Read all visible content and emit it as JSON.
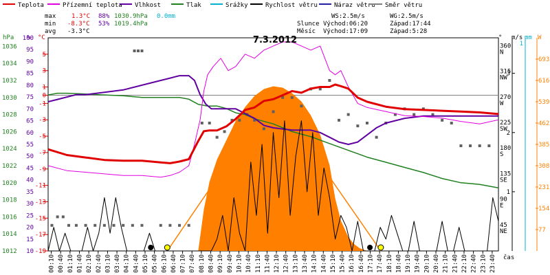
{
  "legend": [
    {
      "label": "Teplota",
      "color": "#e00000"
    },
    {
      "label": "Přízemní teplota",
      "color": "#e000e0"
    },
    {
      "label": "Vlhkost",
      "color": "#6000a0"
    },
    {
      "label": "Tlak",
      "color": "#208020"
    },
    {
      "label": "Srážky",
      "color": "#00b0d0"
    },
    {
      "label": "Rychlost větru",
      "color": "#000000"
    },
    {
      "label": "Náraz větru",
      "color": "#2020a0"
    },
    {
      "label": "Směr větru",
      "color": "#808080"
    }
  ],
  "stats": {
    "max_label": "max",
    "max_temp": "1.3°C",
    "max_hum": "88%",
    "max_press": "1030.9hPa",
    "max_rain": "0.0mm",
    "min_label": "min",
    "min_temp": "-8.3°C",
    "min_hum": "53%",
    "min_press": "1019.4hPa",
    "avg_label": "avg",
    "avg_temp": "-3.3°C"
  },
  "wind_info": {
    "ws": "WS:2.5m/s",
    "wg": "WG:2.5m/s"
  },
  "sun": {
    "label": "Slunce",
    "rise": "Východ:06:20",
    "set": "Západ:17:44"
  },
  "moon": {
    "label": "Měsíc",
    "rise": "Východ:17:09",
    "set": "Západ:5:28"
  },
  "colors": {
    "temp": "#e00000",
    "ground": "#e000e0",
    "hum": "#6000a0",
    "press": "#208020",
    "rain": "#00b0d0",
    "wind": "#000000",
    "gust": "#2020a0",
    "dir": "#606060",
    "solar": "#ff8000",
    "grid": "#e0e0e0"
  },
  "chart_data": {
    "type": "line",
    "title": "7.3.2012",
    "xlabel": "čas",
    "x_ticks": [
      "00:10",
      "00:40",
      "01:10",
      "01:40",
      "02:10",
      "02:40",
      "03:10",
      "03:40",
      "04:10",
      "04:40",
      "05:10",
      "05:40",
      "06:10",
      "06:40",
      "07:10",
      "07:40",
      "08:10",
      "08:40",
      "09:10",
      "09:40",
      "10:10",
      "10:40",
      "11:10",
      "11:40",
      "12:10",
      "12:40",
      "13:10",
      "13:40",
      "14:10",
      "14:40",
      "15:10",
      "15:40",
      "16:10",
      "16:40",
      "17:10",
      "17:40",
      "18:10",
      "18:40",
      "19:10",
      "19:40",
      "20:10",
      "20:40",
      "21:10",
      "21:40",
      "22:10",
      "22:40",
      "23:10",
      "23:40"
    ],
    "axes": {
      "hpa": {
        "label": "hPa",
        "ticks": [
          "1036",
          "1034",
          "1032",
          "1030",
          "1028",
          "1026",
          "1024",
          "1022",
          "1020",
          "1018",
          "1016",
          "1014",
          "1012"
        ],
        "range": [
          1012,
          1037
        ]
      },
      "percent": {
        "label": "%",
        "ticks": [
          "100",
          "95",
          "90",
          "85",
          "80",
          "75",
          "70",
          "65",
          "60",
          "55",
          "50",
          "45",
          "40",
          "35",
          "30",
          "25",
          "20",
          "15",
          "10"
        ],
        "range": [
          10,
          100
        ]
      },
      "celsius": {
        "label": "°C",
        "ticks": [
          "5",
          "3",
          "1",
          "0",
          "-1",
          "-3",
          "-5",
          "-7",
          "-9",
          "-11",
          "-13",
          "-15",
          "-17",
          "-19"
        ],
        "range": [
          -19,
          7
        ]
      },
      "dir": {
        "label": "°",
        "ticks": [
          {
            "deg": "360",
            "name": "N"
          },
          {
            "deg": "315",
            "name": "NW"
          },
          {
            "deg": "270",
            "name": "W"
          },
          {
            "deg": "225",
            "name": "SW"
          },
          {
            "deg": "180",
            "name": "S"
          },
          {
            "deg": "135",
            "name": "SE"
          },
          {
            "deg": "90",
            "name": "E"
          },
          {
            "deg": "45",
            "name": "NE"
          }
        ],
        "range": [
          0,
          375
        ]
      },
      "ms": {
        "label": "m/s",
        "ticks": [
          "3",
          "2",
          "1"
        ],
        "range": [
          0,
          3.6
        ]
      },
      "mm": {
        "label": "mm",
        "ticks": [
          "1"
        ]
      },
      "w": {
        "label": "W",
        "ticks": [
          "693",
          "616",
          "539",
          "462",
          "385",
          "308",
          "231",
          "154",
          "77"
        ],
        "range": [
          0,
          770
        ]
      }
    },
    "series": [
      {
        "name": "Teplota",
        "axis": "celsius",
        "x": [
          0,
          1,
          2,
          3,
          4,
          5,
          6,
          6.5,
          7,
          7.5,
          8,
          8.3,
          8.6,
          9,
          9.5,
          10,
          10.5,
          11,
          11.5,
          12,
          12.5,
          13,
          13.5,
          14,
          14.5,
          15,
          15.3,
          15.6,
          16,
          16.5,
          17,
          18,
          19,
          20,
          21,
          22,
          23,
          24
        ],
        "y": [
          -6.6,
          -7.3,
          -7.6,
          -7.9,
          -8.0,
          -8.0,
          -8.2,
          -8.3,
          -8.1,
          -7.8,
          -5.6,
          -4.4,
          -4.3,
          -4.3,
          -3.8,
          -2.9,
          -1.8,
          -1.5,
          -0.7,
          -0.5,
          0.0,
          0.5,
          0.3,
          0.8,
          1.0,
          1.0,
          1.3,
          1.1,
          0.8,
          -0.3,
          -0.8,
          -1.4,
          -1.7,
          -1.8,
          -1.9,
          -2.0,
          -2.1,
          -2.3
        ]
      },
      {
        "name": "Přízemní teplota",
        "axis": "celsius",
        "x": [
          0,
          1,
          2,
          3,
          4,
          5,
          6,
          6.5,
          7,
          7.5,
          7.8,
          8.1,
          8.3,
          8.5,
          8.8,
          9.2,
          9.6,
          10,
          10.5,
          11,
          11.5,
          12,
          12.5,
          13,
          13.5,
          14,
          14.5,
          15,
          15.3,
          15.6,
          16,
          16.5,
          17,
          18,
          19,
          20,
          21,
          22,
          23,
          24
        ],
        "y": [
          -8.6,
          -9.2,
          -9.4,
          -9.6,
          -9.8,
          -9.8,
          -10.0,
          -9.8,
          -9.4,
          -8.6,
          -6.0,
          -3.0,
          0.5,
          2.5,
          3.5,
          4.5,
          3.0,
          3.5,
          5.0,
          4.5,
          5.5,
          6.0,
          6.5,
          6.5,
          6.0,
          5.5,
          6.0,
          3.0,
          2.5,
          3.0,
          1.0,
          -1.0,
          -1.5,
          -2.0,
          -2.5,
          -2.6,
          -2.8,
          -3.2,
          -3.5,
          -3.0
        ]
      },
      {
        "name": "Vlhkost",
        "axis": "percent",
        "x": [
          0,
          0.5,
          1,
          1.5,
          2,
          3,
          4,
          5,
          6,
          6.5,
          7,
          7.5,
          7.8,
          8.1,
          8.4,
          8.7,
          9,
          9.5,
          10,
          10.5,
          11,
          11.5,
          12,
          13,
          14,
          14.5,
          15,
          15.5,
          16,
          16.5,
          17,
          17.5,
          18,
          19,
          20,
          21,
          22,
          23,
          24
        ],
        "y": [
          73,
          74,
          75,
          76,
          76,
          77,
          78,
          80,
          82,
          83,
          84,
          84,
          82,
          76,
          72,
          70,
          70,
          70,
          70,
          68,
          66,
          63,
          62,
          61,
          61,
          60,
          58,
          56,
          55,
          56,
          59,
          62,
          64,
          66,
          67,
          67,
          67,
          67,
          67
        ]
      },
      {
        "name": "Tlak",
        "axis": "hpa",
        "x": [
          0,
          0.5,
          1,
          2,
          3,
          4,
          5,
          6,
          6.5,
          7,
          7.5,
          8,
          8.5,
          9,
          9.5,
          10,
          10.5,
          11,
          12,
          13,
          14,
          15,
          16,
          16.5,
          17,
          18,
          19,
          20,
          21,
          22,
          23,
          24
        ],
        "y": [
          1030.3,
          1030.5,
          1030.5,
          1030.4,
          1030.3,
          1030.2,
          1030.0,
          1030.0,
          1030.0,
          1030.0,
          1029.8,
          1029.2,
          1029.0,
          1029.0,
          1028.7,
          1028.2,
          1028.0,
          1027.5,
          1026.9,
          1026.0,
          1025.4,
          1024.6,
          1023.8,
          1023.4,
          1023.0,
          1022.4,
          1021.8,
          1021.2,
          1020.5,
          1020.0,
          1019.8,
          1019.4
        ]
      },
      {
        "name": "Rychlost větru",
        "axis": "ms",
        "x": [
          0,
          0.3,
          0.6,
          0.9,
          1.2,
          1.5,
          1.8,
          2.1,
          2.4,
          2.7,
          3.0,
          3.3,
          3.6,
          3.9,
          4.2,
          4.5,
          4.8,
          5.1,
          5.4,
          5.7,
          6.0,
          6.3,
          6.6,
          6.9,
          7.2,
          7.5,
          7.8,
          8.1,
          8.4,
          8.7,
          9.0,
          9.3,
          9.6,
          9.9,
          10.2,
          10.5,
          10.8,
          11.1,
          11.4,
          11.7,
          12.0,
          12.3,
          12.6,
          12.9,
          13.2,
          13.5,
          13.8,
          14.1,
          14.4,
          14.7,
          15.0,
          15.3,
          15.6,
          15.9,
          16.2,
          16.5,
          16.8,
          17.1,
          17.4,
          17.7,
          18.0,
          18.3,
          18.6,
          18.9,
          19.2,
          19.5,
          19.8,
          20.1,
          20.4,
          20.7,
          21.0,
          21.3,
          21.6,
          21.9,
          22.2,
          22.5,
          22.8,
          23.1,
          23.4,
          23.7,
          24.0
        ],
        "y": [
          0,
          0.4,
          0,
          0.3,
          0,
          0,
          0,
          0.4,
          0,
          0.3,
          0.9,
          0.3,
          0.9,
          0.4,
          0,
          0,
          0,
          0,
          0.3,
          0,
          0,
          0,
          0,
          0,
          0,
          0,
          0,
          0,
          0,
          0,
          0.2,
          0.6,
          0,
          0.9,
          0.3,
          0,
          1.5,
          0.6,
          1.8,
          0.3,
          2.0,
          0.9,
          2.2,
          0.6,
          1.6,
          2.2,
          1.0,
          2.0,
          0.6,
          1.4,
          0.9,
          0.2,
          0.6,
          0.4,
          0,
          0.5,
          0,
          0,
          0,
          0.4,
          0.2,
          0.6,
          0.3,
          0,
          0,
          0.5,
          0,
          0,
          0,
          0,
          0.5,
          0,
          0,
          0.4,
          0,
          0,
          0,
          0,
          0,
          0.9,
          0.5
        ]
      },
      {
        "name": "Sluneční záření",
        "axis": "w",
        "x": [
          8.0,
          8.3,
          8.6,
          9,
          9.5,
          10,
          10.5,
          11,
          11.5,
          12,
          12.5,
          13,
          13.5,
          14,
          14.5,
          15,
          15.3,
          15.6,
          16,
          16.3,
          16.6,
          17.0
        ],
        "y": [
          0,
          150,
          250,
          330,
          400,
          470,
          520,
          560,
          585,
          595,
          590,
          570,
          540,
          490,
          420,
          310,
          190,
          110,
          50,
          25,
          10,
          0
        ]
      }
    ],
    "wind_direction_points": [
      [
        0.2,
        45
      ],
      [
        0.5,
        60
      ],
      [
        0.8,
        60
      ],
      [
        1.1,
        45
      ],
      [
        1.5,
        45
      ],
      [
        2.0,
        45
      ],
      [
        2.5,
        45
      ],
      [
        3.0,
        45
      ],
      [
        3.5,
        45
      ],
      [
        4.0,
        45
      ],
      [
        4.5,
        45
      ],
      [
        5.0,
        45
      ],
      [
        4.6,
        352
      ],
      [
        4.8,
        352
      ],
      [
        5.0,
        352
      ],
      [
        6.0,
        45
      ],
      [
        6.5,
        45
      ],
      [
        7.0,
        45
      ],
      [
        7.5,
        45
      ],
      [
        8.2,
        225
      ],
      [
        8.6,
        225
      ],
      [
        9.0,
        200
      ],
      [
        9.4,
        210
      ],
      [
        9.8,
        230
      ],
      [
        10.2,
        230
      ],
      [
        10.6,
        240
      ],
      [
        11.0,
        230
      ],
      [
        11.5,
        215
      ],
      [
        12.0,
        245
      ],
      [
        12.5,
        270
      ],
      [
        13.0,
        270
      ],
      [
        13.5,
        255
      ],
      [
        14.0,
        285
      ],
      [
        14.5,
        285
      ],
      [
        15.0,
        300
      ],
      [
        15.5,
        230
      ],
      [
        16.0,
        240
      ],
      [
        16.5,
        220
      ],
      [
        17.0,
        225
      ],
      [
        17.5,
        200
      ],
      [
        18.0,
        225
      ],
      [
        18.5,
        240
      ],
      [
        19.0,
        250
      ],
      [
        19.5,
        240
      ],
      [
        20.0,
        250
      ],
      [
        20.5,
        240
      ],
      [
        21.0,
        230
      ],
      [
        21.5,
        225
      ],
      [
        22.0,
        185
      ],
      [
        22.5,
        185
      ],
      [
        23.0,
        185
      ],
      [
        23.5,
        185
      ]
    ],
    "sun_markers": [
      {
        "x": 6.35,
        "kind": "sunrise"
      },
      {
        "x": 17.73,
        "kind": "sunset"
      }
    ],
    "moon_markers": [
      {
        "x": 5.47,
        "kind": "moonset"
      },
      {
        "x": 17.15,
        "kind": "moonrise"
      }
    ],
    "sun_line": {
      "x": [
        6.35,
        12.0,
        17.73
      ],
      "y": [
        0,
        560,
        0
      ]
    }
  }
}
